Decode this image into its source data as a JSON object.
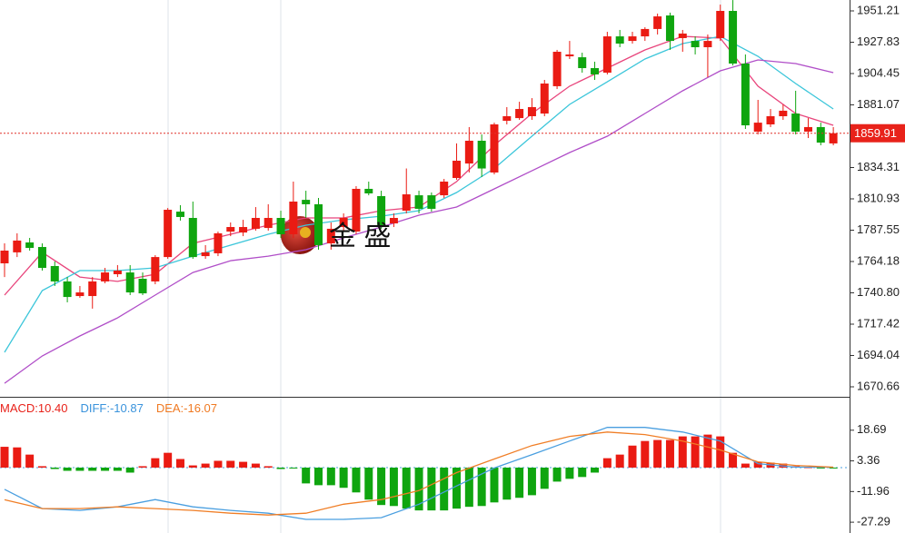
{
  "chart_data": [
    {
      "type": "candlestick",
      "open": [
        1762.8,
        1771.0,
        1778.4,
        1775.0,
        1760.8,
        1749.3,
        1738.4,
        1738.4,
        1749.3,
        1754.7,
        1756.0,
        1751.3,
        1749.3,
        1767.5,
        1801.4,
        1796.7,
        1768.2,
        1770.3,
        1786.5,
        1785.8,
        1788.6,
        1789.2,
        1796.7,
        1784.5,
        1810.2,
        1806.9,
        1777.7,
        1789.9,
        1786.5,
        1818.4,
        1813.0,
        1792.6,
        1802.1,
        1813.6,
        1813.6,
        1813.6,
        1826.5,
        1837.3,
        1854.3,
        1830.6,
        1869.2,
        1871.2,
        1872.6,
        1874.6,
        1895.0,
        1917.3,
        1916.6,
        1908.5,
        1905.1,
        1932.2,
        1928.8,
        1932.2,
        1937.7,
        1947.8,
        1930.9,
        1928.8,
        1924.1,
        1930.9,
        1951.2,
        1911.9,
        1861.1,
        1866.5,
        1872.6,
        1874.6,
        1861.1,
        1864.5,
        1852.3
      ],
      "high": [
        1777.7,
        1785.2,
        1781.8,
        1777.7,
        1764.2,
        1752.6,
        1745.9,
        1752.6,
        1759.4,
        1761.5,
        1761.5,
        1756.0,
        1768.9,
        1804.1,
        1806.2,
        1808.9,
        1776.4,
        1786.5,
        1793.3,
        1795.3,
        1804.8,
        1806.9,
        1802.1,
        1823.8,
        1817.0,
        1811.6,
        1793.3,
        1800.1,
        1820.4,
        1823.8,
        1817.0,
        1800.1,
        1833.6,
        1817.0,
        1815.7,
        1825.8,
        1852.3,
        1864.5,
        1859.0,
        1867.8,
        1879.4,
        1883.4,
        1886.1,
        1899.7,
        1922.1,
        1928.8,
        1920.0,
        1913.3,
        1935.6,
        1937.0,
        1935.6,
        1939.0,
        1949.2,
        1949.9,
        1937.0,
        1932.2,
        1933.6,
        1955.9,
        1959.3,
        1918.7,
        1884.8,
        1878.0,
        1881.4,
        1891.6,
        1871.2,
        1867.8,
        1864.5
      ],
      "low": [
        1752.6,
        1767.5,
        1772.3,
        1757.4,
        1745.9,
        1733.7,
        1737.1,
        1729.0,
        1747.9,
        1752.6,
        1739.1,
        1739.1,
        1747.2,
        1766.2,
        1794.7,
        1766.2,
        1766.2,
        1768.2,
        1783.1,
        1783.1,
        1787.2,
        1787.2,
        1781.8,
        1781.8,
        1796.7,
        1773.0,
        1773.0,
        1786.5,
        1784.5,
        1813.6,
        1788.6,
        1789.9,
        1800.1,
        1800.1,
        1801.4,
        1811.6,
        1825.2,
        1830.6,
        1827.2,
        1829.2,
        1866.5,
        1869.9,
        1869.9,
        1872.6,
        1892.9,
        1915.3,
        1905.1,
        1899.7,
        1903.8,
        1924.1,
        1926.8,
        1928.8,
        1933.6,
        1922.1,
        1920.7,
        1918.7,
        1901.7,
        1928.8,
        1910.5,
        1863.1,
        1859.0,
        1864.5,
        1869.9,
        1859.0,
        1856.3,
        1850.9,
        1850.9
      ],
      "close": [
        1772.3,
        1779.8,
        1774.3,
        1759.4,
        1749.3,
        1737.7,
        1741.1,
        1749.3,
        1756.0,
        1757.4,
        1741.1,
        1740.4,
        1767.5,
        1802.8,
        1797.4,
        1767.5,
        1771.0,
        1785.2,
        1789.9,
        1789.9,
        1796.7,
        1796.7,
        1784.5,
        1808.9,
        1806.9,
        1776.4,
        1788.6,
        1796.7,
        1818.4,
        1815.0,
        1791.3,
        1796.7,
        1814.3,
        1803.5,
        1803.5,
        1823.8,
        1839.4,
        1854.3,
        1833.6,
        1866.5,
        1872.6,
        1878.0,
        1879.4,
        1897.0,
        1920.7,
        1918.7,
        1908.5,
        1903.8,
        1932.2,
        1926.8,
        1932.2,
        1937.7,
        1947.1,
        1928.8,
        1934.3,
        1924.1,
        1928.8,
        1951.2,
        1911.9,
        1865.8,
        1867.8,
        1872.6,
        1876.7,
        1861.1,
        1864.5,
        1852.9,
        1859.91
      ],
      "up_color": "#ea1b13",
      "down_color": "#0fa50f",
      "series": [
        {
          "color": "#e8457c",
          "x": [
            0,
            3,
            6,
            9,
            12,
            15,
            18,
            21,
            24,
            27,
            30,
            33,
            36,
            39,
            42,
            45,
            48,
            51,
            54,
            57,
            60,
            63,
            66
          ],
          "values": [
            1739.1,
            1771.0,
            1752.6,
            1749.3,
            1754.7,
            1777.7,
            1784.5,
            1791.3,
            1796.7,
            1796.7,
            1802.1,
            1804.8,
            1823.8,
            1850.9,
            1874.6,
            1895.0,
            1908.5,
            1922.1,
            1932.2,
            1930.9,
            1895.0,
            1874.6,
            1865.8
          ]
        },
        {
          "color": "#3cc6da",
          "x": [
            0,
            3,
            6,
            9,
            12,
            15,
            18,
            21,
            24,
            27,
            30,
            33,
            36,
            39,
            42,
            45,
            48,
            51,
            54,
            57,
            60,
            63,
            66
          ],
          "values": [
            1696.4,
            1742.5,
            1757.4,
            1757.4,
            1759.4,
            1768.2,
            1776.4,
            1784.5,
            1791.3,
            1795.3,
            1798.0,
            1802.1,
            1815.7,
            1833.6,
            1857.7,
            1881.4,
            1898.3,
            1915.3,
            1926.8,
            1932.2,
            1917.3,
            1897.0,
            1878.0
          ]
        },
        {
          "color": "#b04ec8",
          "x": [
            0,
            3,
            6,
            9,
            12,
            15,
            18,
            21,
            24,
            27,
            30,
            33,
            36,
            39,
            42,
            45,
            48,
            51,
            54,
            57,
            60,
            63,
            66
          ],
          "values": [
            1673.3,
            1693.7,
            1708.6,
            1722.1,
            1739.1,
            1756.0,
            1764.8,
            1768.2,
            1773.0,
            1781.8,
            1789.9,
            1798.7,
            1804.8,
            1818.4,
            1831.9,
            1845.5,
            1857.7,
            1874.6,
            1891.6,
            1906.5,
            1914.6,
            1911.9,
            1905.1
          ]
        }
      ],
      "last_price": 1859.91,
      "ylim": [
        1663.2,
        1959.34
      ],
      "yticks": [
        1951.21,
        1927.83,
        1904.45,
        1881.07,
        1834.31,
        1810.93,
        1787.55,
        1764.18,
        {
          "value": 1740.8,
          "label": "1740.80"
        },
        1717.42,
        1694.04,
        1670.66
      ],
      "watermark": "金 盛"
    },
    {
      "type": "macd",
      "indicators": {
        "names": [
          "MACD:",
          "DIFF:",
          "DEA:"
        ],
        "values": [
          10.4,
          -10.87,
          -16.07
        ],
        "value_labels": [
          "10.40",
          "-10.87",
          "-16.07"
        ],
        "colors": [
          "#e8221a",
          "#3a93dc",
          "#f07a22"
        ]
      },
      "values": [
        10.4,
        10.1,
        6.5,
        0.7,
        -0.7,
        -1.6,
        -1.6,
        -1.6,
        -1.6,
        -1.6,
        -2.5,
        0.7,
        4.7,
        7.4,
        4.3,
        1.1,
        2.0,
        3.4,
        3.4,
        2.9,
        2.0,
        0.7,
        -0.7,
        -0.3,
        -7.9,
        -8.8,
        -8.8,
        -10.1,
        -12.4,
        -16.0,
        -18.7,
        -19.2,
        -20.5,
        -21.4,
        -21.4,
        -21.4,
        -20.5,
        -19.6,
        -19.2,
        -17.4,
        -16.0,
        -15.1,
        -13.8,
        -10.6,
        -7.0,
        -5.6,
        -4.7,
        -2.5,
        4.7,
        6.5,
        11.0,
        13.3,
        13.8,
        13.8,
        15.6,
        15.6,
        16.5,
        15.6,
        7.4,
        2.0,
        2.9,
        2.5,
        2.0,
        0.7,
        0.2,
        -0.2,
        -0.2
      ],
      "up_color": "#ea1b13",
      "down_color": "#0fa50f",
      "series": [
        {
          "color": "#4a9fe0",
          "x": [
            0,
            3,
            6,
            9,
            12,
            15,
            18,
            21,
            24,
            27,
            30,
            33,
            36,
            39,
            42,
            45,
            48,
            51,
            54,
            57,
            60,
            63,
            66
          ],
          "values": [
            -10.87,
            -20.5,
            -21.4,
            -19.6,
            -16.0,
            -19.6,
            -21.4,
            -22.8,
            -25.9,
            -25.9,
            -25.0,
            -18.3,
            -9.2,
            -0.2,
            6.5,
            13.3,
            20.1,
            20.1,
            17.8,
            13.3,
            2.0,
            0.2,
            0.2
          ]
        },
        {
          "color": "#f07e26",
          "x": [
            0,
            3,
            6,
            9,
            12,
            15,
            18,
            21,
            24,
            27,
            30,
            33,
            36,
            39,
            42,
            45,
            48,
            51,
            54,
            57,
            60,
            63,
            66
          ],
          "values": [
            -16.07,
            -20.5,
            -20.5,
            -19.6,
            -20.5,
            -21.4,
            -22.8,
            -23.7,
            -22.8,
            -18.3,
            -16.0,
            -11.5,
            -2.5,
            4.3,
            11.0,
            15.6,
            17.8,
            16.5,
            13.3,
            8.8,
            2.9,
            1.1,
            0.2
          ]
        }
      ],
      "ylim": [
        -32.69,
        34.94
      ],
      "yticks": [
        18.69,
        3.36,
        -11.96,
        -27.29
      ]
    }
  ]
}
